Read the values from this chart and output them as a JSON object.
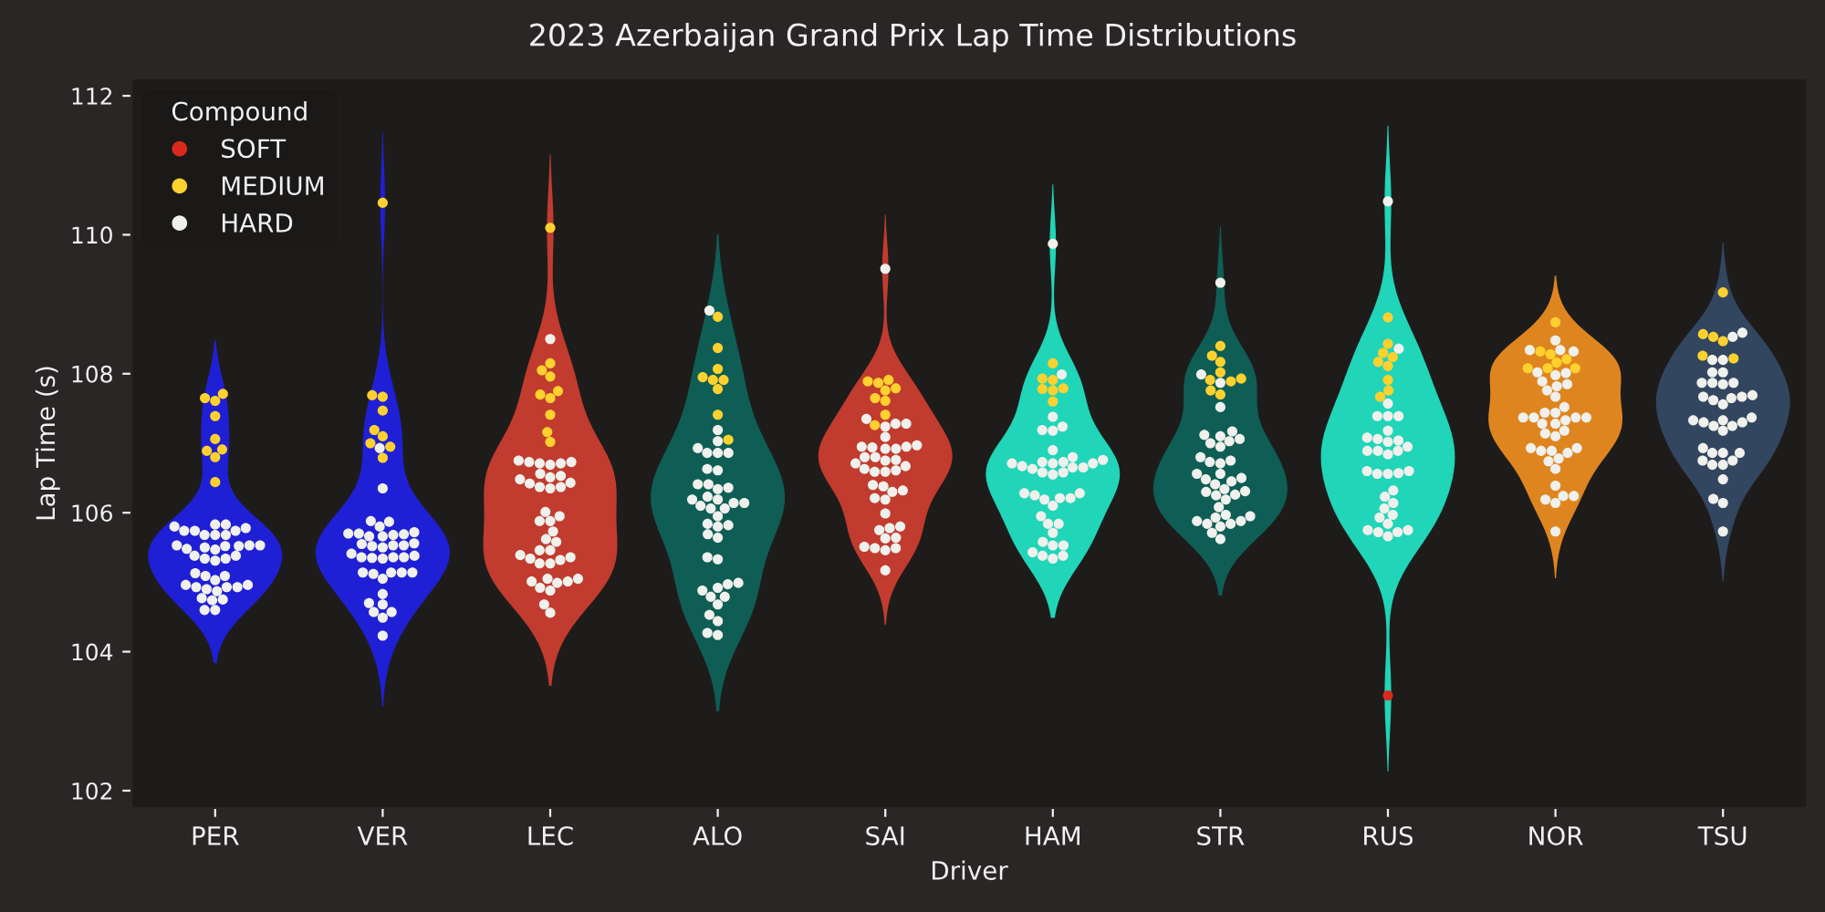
{
  "chart_data": {
    "type": "scatter",
    "title": "2023 Azerbaijan Grand Prix Lap Time Distributions",
    "xlabel": "Driver",
    "ylabel": "Lap Time (s)",
    "legend_title": "Compound",
    "legend": "top left",
    "marker": "circle",
    "grid": false,
    "categories": [
      "PER",
      "VER",
      "LEC",
      "ALO",
      "SAI",
      "HAM",
      "STR",
      "RUS",
      "NOR",
      "TSU"
    ],
    "colors": [
      "#1f1fd6",
      "#1f1fd6",
      "#c13b2e",
      "#0e5e55",
      "#c13b2e",
      "#20d5b8",
      "#0e5e55",
      "#20d5b8",
      "#df8520",
      "#324660"
    ],
    "ylim": [
      101.75,
      112.25
    ],
    "yticks": [
      102,
      104,
      106,
      108,
      110,
      112
    ],
    "series": [
      {
        "name": "SOFT",
        "color": "#da291c",
        "x": [
          "RUS"
        ],
        "values": [
          103.37
        ]
      },
      {
        "name": "MEDIUM",
        "color": "#ffd12e",
        "x": [
          "PER",
          "PER",
          "PER",
          "PER",
          "PER",
          "PER",
          "PER",
          "PER",
          "PER",
          "VER",
          "VER",
          "VER",
          "VER",
          "VER",
          "VER",
          "VER",
          "VER",
          "VER",
          "LEC",
          "LEC",
          "LEC",
          "LEC",
          "LEC",
          "LEC",
          "LEC",
          "LEC",
          "LEC",
          "LEC",
          "ALO",
          "ALO",
          "ALO",
          "ALO",
          "ALO",
          "ALO",
          "ALO",
          "ALO",
          "ALO",
          "SAI",
          "SAI",
          "SAI",
          "SAI",
          "SAI",
          "SAI",
          "SAI",
          "SAI",
          "SAI",
          "HAM",
          "HAM",
          "HAM",
          "HAM",
          "HAM",
          "HAM",
          "HAM",
          "STR",
          "STR",
          "STR",
          "STR",
          "STR",
          "STR",
          "STR",
          "STR",
          "STR",
          "RUS",
          "RUS",
          "RUS",
          "RUS",
          "RUS",
          "RUS",
          "RUS",
          "RUS",
          "RUS",
          "NOR",
          "NOR",
          "NOR",
          "NOR",
          "NOR",
          "NOR",
          "NOR",
          "NOR",
          "TSU",
          "TSU",
          "TSU",
          "TSU",
          "TSU",
          "TSU"
        ],
        "values": [
          107.65,
          107.61,
          107.71,
          107.39,
          107.06,
          106.89,
          106.91,
          106.8,
          106.44,
          110.46,
          107.69,
          107.67,
          107.47,
          107.19,
          107.1,
          107.0,
          106.95,
          106.79,
          110.1,
          108.15,
          108.05,
          107.96,
          107.7,
          107.65,
          107.75,
          107.41,
          107.16,
          107.02,
          108.82,
          108.37,
          108.07,
          107.91,
          107.91,
          107.95,
          107.78,
          107.41,
          107.05,
          107.91,
          107.87,
          107.89,
          107.79,
          107.76,
          107.65,
          107.61,
          107.41,
          107.26,
          108.15,
          107.93,
          107.91,
          107.79,
          107.76,
          107.78,
          107.6,
          108.4,
          108.26,
          108.17,
          108.02,
          107.93,
          107.91,
          107.89,
          107.76,
          107.7,
          108.81,
          108.43,
          108.3,
          108.24,
          108.17,
          108.11,
          107.91,
          107.76,
          107.67,
          108.74,
          108.28,
          108.32,
          108.21,
          108.16,
          108.08,
          108.08,
          108.08,
          109.17,
          108.57,
          108.47,
          108.53,
          108.26,
          108.22
        ]
      },
      {
        "name": "HARD",
        "color": "#f0f0ec",
        "x": [
          "PER",
          "PER",
          "PER",
          "PER",
          "PER",
          "PER",
          "PER",
          "PER",
          "PER",
          "PER",
          "PER",
          "PER",
          "PER",
          "PER",
          "PER",
          "PER",
          "PER",
          "PER",
          "PER",
          "PER",
          "PER",
          "PER",
          "PER",
          "PER",
          "PER",
          "PER",
          "PER",
          "PER",
          "PER",
          "PER",
          "PER",
          "PER",
          "PER",
          "PER",
          "PER",
          "PER",
          "PER",
          "PER",
          "PER",
          "VER",
          "VER",
          "VER",
          "VER",
          "VER",
          "VER",
          "VER",
          "VER",
          "VER",
          "VER",
          "VER",
          "VER",
          "VER",
          "VER",
          "VER",
          "VER",
          "VER",
          "VER",
          "VER",
          "VER",
          "VER",
          "VER",
          "VER",
          "VER",
          "VER",
          "VER",
          "VER",
          "VER",
          "VER",
          "VER",
          "VER",
          "VER",
          "VER",
          "VER",
          "VER",
          "VER",
          "VER",
          "VER",
          "LEC",
          "LEC",
          "LEC",
          "LEC",
          "LEC",
          "LEC",
          "LEC",
          "LEC",
          "LEC",
          "LEC",
          "LEC",
          "LEC",
          "LEC",
          "LEC",
          "LEC",
          "LEC",
          "LEC",
          "LEC",
          "LEC",
          "LEC",
          "LEC",
          "LEC",
          "LEC",
          "LEC",
          "LEC",
          "LEC",
          "LEC",
          "LEC",
          "LEC",
          "LEC",
          "LEC",
          "LEC",
          "LEC",
          "LEC",
          "LEC",
          "LEC",
          "LEC",
          "LEC",
          "LEC",
          "LEC",
          "ALO",
          "ALO",
          "ALO",
          "ALO",
          "ALO",
          "ALO",
          "ALO",
          "ALO",
          "ALO",
          "ALO",
          "ALO",
          "ALO",
          "ALO",
          "ALO",
          "ALO",
          "ALO",
          "ALO",
          "ALO",
          "ALO",
          "ALO",
          "ALO",
          "ALO",
          "ALO",
          "ALO",
          "ALO",
          "ALO",
          "ALO",
          "ALO",
          "ALO",
          "ALO",
          "ALO",
          "ALO",
          "ALO",
          "ALO",
          "ALO",
          "ALO",
          "ALO",
          "ALO",
          "ALO",
          "ALO",
          "SAI",
          "SAI",
          "SAI",
          "SAI",
          "SAI",
          "SAI",
          "SAI",
          "SAI",
          "SAI",
          "SAI",
          "SAI",
          "SAI",
          "SAI",
          "SAI",
          "SAI",
          "SAI",
          "SAI",
          "SAI",
          "SAI",
          "SAI",
          "SAI",
          "SAI",
          "SAI",
          "SAI",
          "SAI",
          "SAI",
          "SAI",
          "SAI",
          "SAI",
          "SAI",
          "SAI",
          "SAI",
          "SAI",
          "SAI",
          "SAI",
          "SAI",
          "SAI",
          "SAI",
          "SAI",
          "HAM",
          "HAM",
          "HAM",
          "HAM",
          "HAM",
          "HAM",
          "HAM",
          "HAM",
          "HAM",
          "HAM",
          "HAM",
          "HAM",
          "HAM",
          "HAM",
          "HAM",
          "HAM",
          "HAM",
          "HAM",
          "HAM",
          "HAM",
          "HAM",
          "HAM",
          "HAM",
          "HAM",
          "HAM",
          "HAM",
          "HAM",
          "HAM",
          "HAM",
          "HAM",
          "HAM",
          "HAM",
          "HAM",
          "HAM",
          "HAM",
          "HAM",
          "HAM",
          "HAM",
          "HAM",
          "STR",
          "STR",
          "STR",
          "STR",
          "STR",
          "STR",
          "STR",
          "STR",
          "STR",
          "STR",
          "STR",
          "STR",
          "STR",
          "STR",
          "STR",
          "STR",
          "STR",
          "STR",
          "STR",
          "STR",
          "STR",
          "STR",
          "STR",
          "STR",
          "STR",
          "STR",
          "STR",
          "STR",
          "STR",
          "STR",
          "STR",
          "STR",
          "STR",
          "STR",
          "STR",
          "STR",
          "STR",
          "STR",
          "RUS",
          "RUS",
          "RUS",
          "RUS",
          "RUS",
          "RUS",
          "RUS",
          "RUS",
          "RUS",
          "RUS",
          "RUS",
          "RUS",
          "RUS",
          "RUS",
          "RUS",
          "RUS",
          "RUS",
          "RUS",
          "RUS",
          "RUS",
          "RUS",
          "RUS",
          "RUS",
          "RUS",
          "RUS",
          "RUS",
          "RUS",
          "RUS",
          "RUS",
          "RUS",
          "RUS",
          "RUS",
          "RUS",
          "NOR",
          "NOR",
          "NOR",
          "NOR",
          "NOR",
          "NOR",
          "NOR",
          "NOR",
          "NOR",
          "NOR",
          "NOR",
          "NOR",
          "NOR",
          "NOR",
          "NOR",
          "NOR",
          "NOR",
          "NOR",
          "NOR",
          "NOR",
          "NOR",
          "NOR",
          "NOR",
          "NOR",
          "NOR",
          "NOR",
          "NOR",
          "NOR",
          "NOR",
          "NOR",
          "NOR",
          "NOR",
          "NOR",
          "NOR",
          "NOR",
          "NOR",
          "NOR",
          "NOR",
          "NOR",
          "TSU",
          "TSU",
          "TSU",
          "TSU",
          "TSU",
          "TSU",
          "TSU",
          "TSU",
          "TSU",
          "TSU",
          "TSU",
          "TSU",
          "TSU",
          "TSU",
          "TSU",
          "TSU",
          "TSU",
          "TSU",
          "TSU",
          "TSU",
          "TSU",
          "TSU",
          "TSU",
          "TSU",
          "TSU",
          "TSU",
          "TSU",
          "TSU",
          "TSU",
          "TSU",
          "TSU",
          "TSU",
          "TSU",
          "TSU",
          "TSU",
          "TSU"
        ],
        "values": [
          105.78,
          105.74,
          105.74,
          105.68,
          105.83,
          105.83,
          105.68,
          105.68,
          105.74,
          105.8,
          105.53,
          105.52,
          105.5,
          105.47,
          105.48,
          105.53,
          105.52,
          105.53,
          105.38,
          105.31,
          105.34,
          105.34,
          105.38,
          105.09,
          105.03,
          105.09,
          105.13,
          104.96,
          104.9,
          104.87,
          104.93,
          104.93,
          104.93,
          104.96,
          104.77,
          104.75,
          104.74,
          104.6,
          104.6,
          106.93,
          106.35,
          105.88,
          105.87,
          105.8,
          105.72,
          105.7,
          105.68,
          105.69,
          105.66,
          105.66,
          105.7,
          105.53,
          105.53,
          105.55,
          105.56,
          105.5,
          105.52,
          105.36,
          105.35,
          105.36,
          105.34,
          105.36,
          105.38,
          105.41,
          105.14,
          105.14,
          105.14,
          105.05,
          105.12,
          105.14,
          104.83,
          104.7,
          104.68,
          104.57,
          104.49,
          104.57,
          104.23,
          108.5,
          106.73,
          106.71,
          106.69,
          106.71,
          106.73,
          106.75,
          106.56,
          106.51,
          106.53,
          106.43,
          106.37,
          106.35,
          106.37,
          106.42,
          106.48,
          106.01,
          105.95,
          105.88,
          105.88,
          105.73,
          105.62,
          105.58,
          105.46,
          105.46,
          105.39,
          105.34,
          105.27,
          105.27,
          105.32,
          105.36,
          105.05,
          105.01,
          105.05,
          104.99,
          105.01,
          104.92,
          104.88,
          104.68,
          104.56,
          108.91,
          107.19,
          107.03,
          106.93,
          106.86,
          106.86,
          106.86,
          106.63,
          106.61,
          106.41,
          106.36,
          106.41,
          106.34,
          106.23,
          106.19,
          106.14,
          106.1,
          106.06,
          106.06,
          106.14,
          105.95,
          105.84,
          105.8,
          105.82,
          105.69,
          105.64,
          106.19,
          105.36,
          105.33,
          104.97,
          104.92,
          104.88,
          104.99,
          104.79,
          104.79,
          104.68,
          104.53,
          104.44,
          104.27,
          104.24,
          109.51,
          107.35,
          107.24,
          107.28,
          107.28,
          107.09,
          106.97,
          106.95,
          106.92,
          106.92,
          106.94,
          106.95,
          106.8,
          106.75,
          106.71,
          106.76,
          106.8,
          106.63,
          106.59,
          106.59,
          106.61,
          106.67,
          106.38,
          106.32,
          106.3,
          106.4,
          106.21,
          106.19,
          105.99,
          105.8,
          105.75,
          105.78,
          105.63,
          105.64,
          105.49,
          105.46,
          105.49,
          105.51,
          105.17,
          109.87,
          107.99,
          107.38,
          107.19,
          107.18,
          107.24,
          106.9,
          106.73,
          106.67,
          106.71,
          106.8,
          106.71,
          106.65,
          106.76,
          106.71,
          106.73,
          106.58,
          106.58,
          106.55,
          106.63,
          106.65,
          106.28,
          106.21,
          106.21,
          106.1,
          106.19,
          106.25,
          106.28,
          105.95,
          105.84,
          105.84,
          105.71,
          105.58,
          105.53,
          105.53,
          105.43,
          105.34,
          105.38,
          105.38,
          109.31,
          107.99,
          107.87,
          107.52,
          107.17,
          107.1,
          107.0,
          106.95,
          107.03,
          107.06,
          107.12,
          106.8,
          106.75,
          106.71,
          106.73,
          106.56,
          106.5,
          106.48,
          106.45,
          106.56,
          106.41,
          106.34,
          106.26,
          106.31,
          106.3,
          106.25,
          106.19,
          106.08,
          105.97,
          105.95,
          105.93,
          105.88,
          105.84,
          105.8,
          105.84,
          105.88,
          105.71,
          105.62,
          110.48,
          108.36,
          107.57,
          107.39,
          107.39,
          107.39,
          107.18,
          107.08,
          107.06,
          107.02,
          107.04,
          106.95,
          106.89,
          106.89,
          106.84,
          106.89,
          106.6,
          106.56,
          106.56,
          106.57,
          106.6,
          106.32,
          106.23,
          106.14,
          106.06,
          105.97,
          105.93,
          105.84,
          105.75,
          105.72,
          105.66,
          105.72,
          105.75,
          108.48,
          108.34,
          108.32,
          108.34,
          108.02,
          107.98,
          108.01,
          107.89,
          107.82,
          107.85,
          107.76,
          107.67,
          107.52,
          107.44,
          107.37,
          107.37,
          107.37,
          107.33,
          107.37,
          107.44,
          107.28,
          107.28,
          107.18,
          107.1,
          107.14,
          106.93,
          106.89,
          106.86,
          106.89,
          106.93,
          106.74,
          106.63,
          106.78,
          106.39,
          106.19,
          106.14,
          106.24,
          106.24,
          105.73,
          108.53,
          108.59,
          108.2,
          108.2,
          108.02,
          108.02,
          107.87,
          107.85,
          107.87,
          107.87,
          107.69,
          107.67,
          107.62,
          107.56,
          107.65,
          107.67,
          107.37,
          107.3,
          107.25,
          107.18,
          107.25,
          107.3,
          107.33,
          107.33,
          106.93,
          106.86,
          106.86,
          106.86,
          106.75,
          106.69,
          106.69,
          106.75,
          106.48,
          106.2,
          106.14,
          105.73
        ]
      }
    ]
  }
}
